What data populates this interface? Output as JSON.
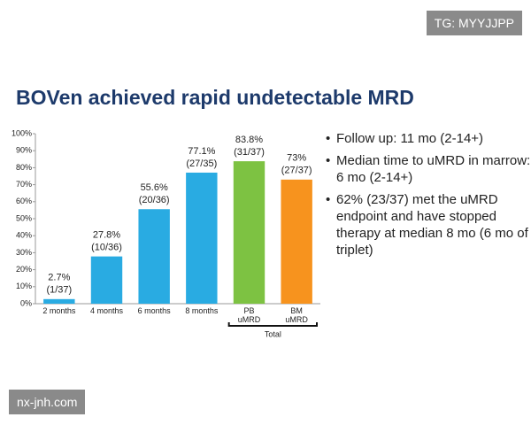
{
  "watermark_top": "TG: MYYJJPP",
  "watermark_bottom": "nx-jnh.com",
  "bullets": [
    "Follow up: 11 mo (2-14+)",
    "Median time to uMRD in marrow: 6 mo (2-14+)",
    "62% (23/37) met the uMRD endpoint and have stopped therapy at median 8 mo (6 mo of triplet)"
  ],
  "chart_data": {
    "type": "bar",
    "title": "BOVen achieved rapid undetectable MRD",
    "categories": [
      "2 months",
      "4 months",
      "6 months",
      "8 months",
      "PB\nuMRD",
      "BM\nuMRD"
    ],
    "values": [
      2.7,
      27.8,
      55.6,
      77.1,
      83.8,
      73
    ],
    "value_labels": [
      "2.7%",
      "27.8%",
      "55.6%",
      "77.1%",
      "83.8%",
      "73%"
    ],
    "fractions": [
      "(1/37)",
      "(10/36)",
      "(20/36)",
      "(27/35)",
      "(31/37)",
      "(27/37)"
    ],
    "colors": [
      "#29abe2",
      "#29abe2",
      "#29abe2",
      "#29abe2",
      "#7dc242",
      "#f7931e"
    ],
    "group_label": "Total",
    "ylim": [
      0,
      100
    ],
    "yticks": [
      {
        "value": 0,
        "label": "0%"
      },
      {
        "value": 10,
        "label": "10%"
      },
      {
        "value": 20,
        "label": "20%"
      },
      {
        "value": 30,
        "label": "30%"
      },
      {
        "value": 40,
        "label": "40%"
      },
      {
        "value": 50,
        "label": "50%"
      },
      {
        "value": 60,
        "label": "60%"
      },
      {
        "value": 70,
        "label": "70%"
      },
      {
        "value": 80,
        "label": "80%"
      },
      {
        "value": 90,
        "label": "90%"
      },
      {
        "value": 100,
        "label": "100%"
      }
    ],
    "grid": false
  }
}
